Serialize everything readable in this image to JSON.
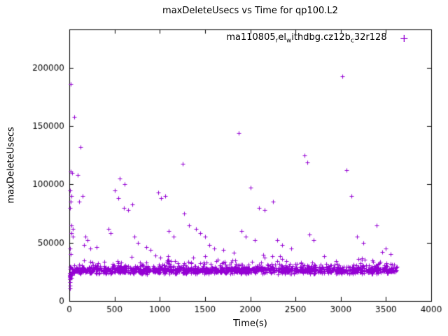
{
  "chart_data": {
    "type": "scatter",
    "title": "maxDeleteUsecs vs Time for qp100.L2",
    "xlabel": "Time(s)",
    "ylabel": "maxDeleteUsecs",
    "xlim": [
      0,
      4000
    ],
    "ylim": [
      0,
      233000
    ],
    "xticks": [
      0,
      500,
      1000,
      1500,
      2000,
      2500,
      3000,
      3500,
      4000
    ],
    "yticks": [
      0,
      50000,
      100000,
      150000,
      200000
    ],
    "grid": false,
    "legend_position": "top-right-inside",
    "marker": "plus",
    "marker_color": "#9400d3",
    "axis_color": "#000000",
    "series": [
      {
        "name": "ma110805_rel_withdbg.cz12b_c32r128",
        "label_segments": [
          {
            "text": "ma110805"
          },
          {
            "text": "r",
            "sub": true
          },
          {
            "text": "el"
          },
          {
            "text": "w",
            "sub": true
          },
          {
            "text": "ithdbg.cz12b"
          },
          {
            "text": "c",
            "sub": true
          },
          {
            "text": "32r128"
          }
        ],
        "outliers": [
          [
            18,
            186000
          ],
          [
            55,
            158000
          ],
          [
            12,
            111000
          ],
          [
            30,
            110000
          ],
          [
            10,
            95000
          ],
          [
            22,
            90000
          ],
          [
            15,
            85000
          ],
          [
            8,
            80000
          ],
          [
            25,
            65000
          ],
          [
            35,
            62000
          ],
          [
            20,
            58000
          ],
          [
            40,
            55000
          ],
          [
            10,
            45000
          ],
          [
            14,
            40000
          ],
          [
            4,
            11000
          ],
          [
            6,
            13500
          ],
          [
            8,
            16000
          ],
          [
            5,
            19000
          ],
          [
            9,
            21000
          ],
          [
            7,
            22500
          ],
          [
            120,
            132000
          ],
          [
            95,
            108000
          ],
          [
            150,
            90000
          ],
          [
            105,
            85000
          ],
          [
            160,
            48000
          ],
          [
            180,
            55000
          ],
          [
            200,
            52000
          ],
          [
            230,
            45000
          ],
          [
            300,
            46000
          ],
          [
            430,
            62000
          ],
          [
            460,
            58000
          ],
          [
            500,
            95000
          ],
          [
            540,
            88000
          ],
          [
            560,
            105000
          ],
          [
            610,
            100000
          ],
          [
            600,
            80000
          ],
          [
            650,
            78000
          ],
          [
            700,
            83000
          ],
          [
            720,
            55000
          ],
          [
            760,
            50000
          ],
          [
            980,
            93000
          ],
          [
            1010,
            88000
          ],
          [
            1060,
            90000
          ],
          [
            1100,
            60000
          ],
          [
            1150,
            55000
          ],
          [
            1250,
            118000
          ],
          [
            1270,
            75000
          ],
          [
            1320,
            65000
          ],
          [
            1400,
            62000
          ],
          [
            1450,
            58000
          ],
          [
            1500,
            55000
          ],
          [
            1550,
            48000
          ],
          [
            1600,
            45000
          ],
          [
            1870,
            144000
          ],
          [
            1900,
            60000
          ],
          [
            1950,
            55000
          ],
          [
            2000,
            97000
          ],
          [
            2050,
            52000
          ],
          [
            2100,
            80000
          ],
          [
            2160,
            78000
          ],
          [
            2250,
            85000
          ],
          [
            2300,
            52000
          ],
          [
            2350,
            48000
          ],
          [
            2600,
            125000
          ],
          [
            2630,
            119000
          ],
          [
            2650,
            57000
          ],
          [
            2700,
            52000
          ],
          [
            3020,
            193000
          ],
          [
            3060,
            112000
          ],
          [
            3120,
            90000
          ],
          [
            3180,
            55000
          ],
          [
            3250,
            50000
          ],
          [
            3400,
            65000
          ],
          [
            3460,
            42000
          ],
          [
            3500,
            45000
          ],
          [
            3550,
            40000
          ],
          [
            2450,
            45000
          ],
          [
            1700,
            44000
          ],
          [
            850,
            46000
          ],
          [
            900,
            44000
          ]
        ],
        "band": {
          "count": 1500,
          "seed": 7,
          "x_min": 2,
          "x_max": 3620,
          "y_base": 23000,
          "y_rand1": 4000,
          "y_rand2": 2500,
          "tail_p": 0.3,
          "tail_add": 4500,
          "spike_p": 0.06,
          "spike_add": 9000,
          "start_ramp_x": 60,
          "start_ramp_drop": 9000
        }
      }
    ]
  }
}
